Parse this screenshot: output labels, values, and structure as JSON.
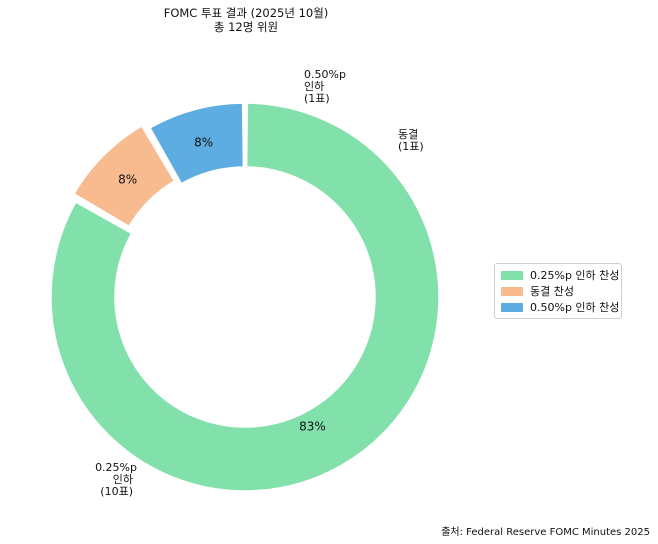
{
  "title_line1": "FOMC 투표 결과 (2025년 10월)",
  "title_line2": "총 12명 위원",
  "source": "출처: Federal Reserve FOMC Minutes 2025",
  "chart_data": {
    "type": "pie",
    "variant": "donut",
    "categories": [
      "0.25%p 인하 찬성",
      "동결 찬성",
      "0.50%p 인하 찬성"
    ],
    "values": [
      10,
      1,
      1
    ],
    "percent_labels": [
      "83%",
      "8%",
      "8%"
    ],
    "outer_labels": [
      [
        "0.25%p",
        "인하",
        "(10표)"
      ],
      [
        "동결",
        "(1표)"
      ],
      [
        "0.50%p",
        "인하",
        "(1표)"
      ]
    ],
    "colors": [
      "#82e0aa",
      "#f8bb8f",
      "#5dade2"
    ],
    "start_angle_deg": 90,
    "direction": "clockwise",
    "legend_position": "right"
  }
}
